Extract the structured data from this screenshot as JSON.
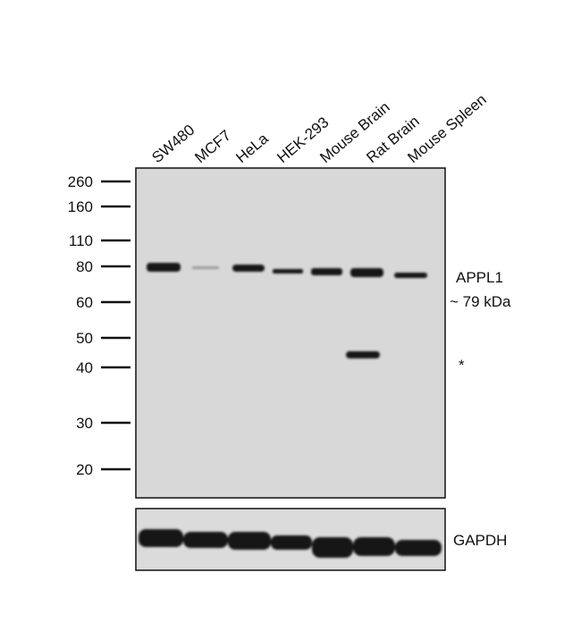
{
  "lanes": [
    "SW480",
    "MCF7",
    "HeLa",
    "HEK-293",
    "Mouse Brain",
    "Rat Brain",
    "Mouse Spleen"
  ],
  "markers": [
    260,
    160,
    110,
    80,
    60,
    50,
    40,
    30,
    20
  ],
  "annotations": {
    "target": "APPL1",
    "size": "~ 79 kDa",
    "nonspecific": "*",
    "loading_control": "GAPDH"
  }
}
